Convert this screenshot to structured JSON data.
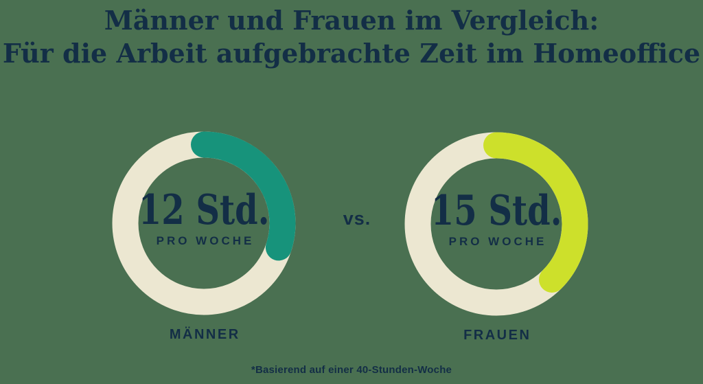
{
  "page": {
    "background_color": "#4A7051",
    "title_line1": "Männer und Frauen im Vergleich:",
    "title_line2": "Für die Arbeit aufgebrachte Zeit im Homeoffice",
    "vs_label": "vs.",
    "footnote": "*Basierend auf einer 40-Stunden-Woche"
  },
  "colors": {
    "background": "#4A7051",
    "navy_text": "#132E46",
    "ring_cream": "#ECE7D1",
    "arc_teal": "#17937B",
    "arc_lime": "#CDE02B"
  },
  "chart_data": {
    "type": "pie",
    "subtype": "donut-progress-comparison",
    "title": "Männer und Frauen im Vergleich: Für die Arbeit aufgebrachte Zeit im Homeoffice",
    "annotation": "*Basierend auf einer 40-Stunden-Woche",
    "basis_hours_per_week": 40,
    "vs_label": "vs.",
    "series": [
      {
        "name": "MÄNNER",
        "hours": 12,
        "fraction_of_week": 0.3,
        "value_label": "12 Std.",
        "sublabel": "PRO WOCHE",
        "arc_color": "#17937B",
        "ring_color": "#ECE7D1"
      },
      {
        "name": "FRAUEN",
        "hours": 15,
        "fraction_of_week": 0.375,
        "value_label": "15 Std.",
        "sublabel": "PRO WOCHE",
        "arc_color": "#CDE02B",
        "ring_color": "#ECE7D1"
      }
    ],
    "layout": {
      "arc_start": "12 o'clock, clockwise",
      "rounded_caps": true,
      "legend_position": "below each donut"
    }
  }
}
